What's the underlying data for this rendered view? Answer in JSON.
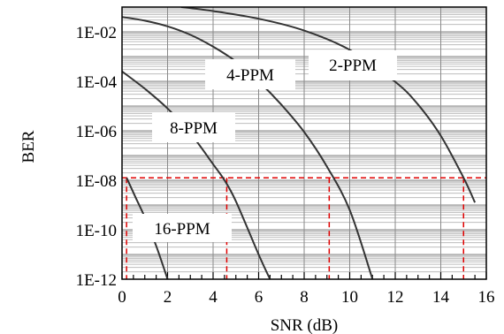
{
  "chart_data": {
    "type": "line",
    "title": "",
    "xlabel": "SNR (dB)",
    "ylabel": "BER",
    "xlim": [
      0,
      16
    ],
    "ylim_log10": [
      -12,
      -1
    ],
    "y_scale": "log",
    "grid": true,
    "x_ticks": [
      0,
      2,
      4,
      6,
      8,
      10,
      12,
      14,
      16
    ],
    "x_tick_labels": [
      "0",
      "2",
      "4",
      "6",
      "8",
      "10",
      "12",
      "14",
      "16"
    ],
    "y_ticks_log10": [
      -12,
      -10,
      -8,
      -6,
      -4,
      -2
    ],
    "y_tick_labels": [
      "1E-12",
      "1E-10",
      "1E-08",
      "1E-06",
      "1E-04",
      "1E-02"
    ],
    "series": [
      {
        "name": "2-PPM",
        "color": "#333333",
        "points": [
          [
            2.6,
            -1.0
          ],
          [
            4,
            -1.16
          ],
          [
            6,
            -1.47
          ],
          [
            8,
            -1.95
          ],
          [
            10,
            -2.73
          ],
          [
            12,
            -4.02
          ],
          [
            13,
            -4.94
          ],
          [
            14,
            -6.2
          ],
          [
            15,
            -7.9
          ],
          [
            15.5,
            -8.9
          ]
        ]
      },
      {
        "name": "4-PPM",
        "color": "#333333",
        "points": [
          [
            0,
            -1.4
          ],
          [
            1,
            -1.55
          ],
          [
            2,
            -1.78
          ],
          [
            3,
            -2.12
          ],
          [
            4,
            -2.6
          ],
          [
            5,
            -3.2
          ],
          [
            6,
            -4.0
          ],
          [
            7,
            -4.95
          ],
          [
            8,
            -6.05
          ],
          [
            9,
            -7.45
          ],
          [
            10,
            -9.2
          ],
          [
            11,
            -12.0
          ]
        ]
      },
      {
        "name": "8-PPM",
        "color": "#333333",
        "points": [
          [
            0,
            -3.6
          ],
          [
            1,
            -4.3
          ],
          [
            2,
            -5.1
          ],
          [
            3,
            -6.1
          ],
          [
            4,
            -7.35
          ],
          [
            4.5,
            -8.0
          ],
          [
            5,
            -8.85
          ],
          [
            6,
            -11.0
          ],
          [
            6.5,
            -12.0
          ]
        ]
      },
      {
        "name": "16-PPM",
        "color": "#333333",
        "points": [
          [
            0.2,
            -7.9
          ],
          [
            0.6,
            -8.7
          ],
          [
            1,
            -9.5
          ],
          [
            1.5,
            -10.65
          ],
          [
            2,
            -12.0
          ]
        ]
      }
    ],
    "reference_lines": {
      "color": "#e00000",
      "style": "dashed",
      "ber_level_log10": -7.9,
      "snr_drops": [
        0.2,
        4.6,
        9.1,
        15.0
      ]
    }
  }
}
